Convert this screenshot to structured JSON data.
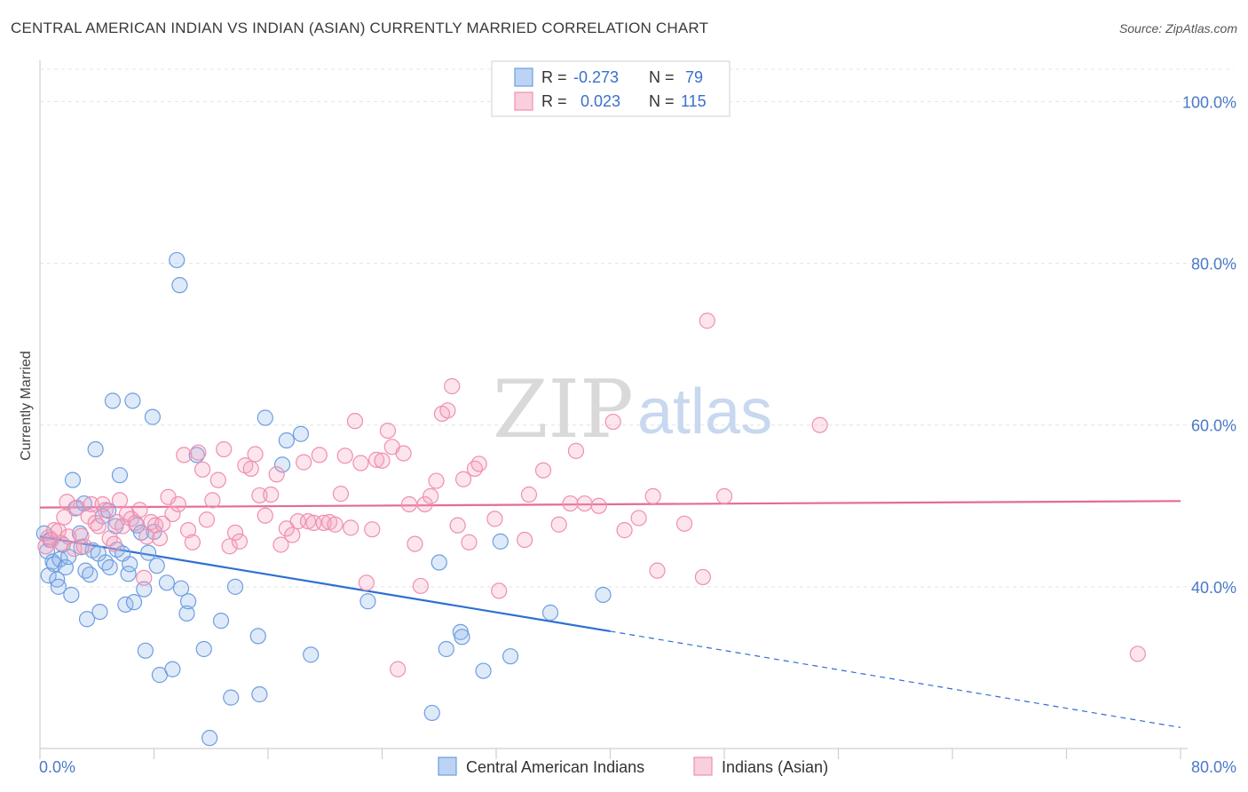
{
  "title": "CENTRAL AMERICAN INDIAN VS INDIAN (ASIAN) CURRENTLY MARRIED CORRELATION CHART",
  "source": "Source: ZipAtlas.com",
  "watermark": {
    "zip": "ZIP",
    "atlas": "atlas"
  },
  "colors": {
    "blue": "#6d9ee0",
    "blue_line": "#2e6fd1",
    "pink": "#ef8fb0",
    "pink_line": "#e46b97",
    "tick": "#4a79c8"
  },
  "legend": {
    "rows": [
      {
        "r_label": "R =",
        "r_value": "-0.273",
        "n_label": "N =",
        "n_value": "79"
      },
      {
        "r_label": "R =",
        "r_value": "0.023",
        "n_label": "N =",
        "n_value": "115"
      }
    ]
  },
  "chart_data": {
    "type": "scatter",
    "title": "CENTRAL AMERICAN INDIAN VS INDIAN (ASIAN) CURRENTLY MARRIED CORRELATION CHART",
    "xlabel": "",
    "ylabel": "Currently Married",
    "xlim": [
      0,
      80
    ],
    "ylim": [
      20,
      104
    ],
    "x_tick_labels": [
      "0.0%",
      "80.0%"
    ],
    "y_ticks": [
      40,
      60,
      80,
      100
    ],
    "y_tick_labels": [
      "40.0%",
      "60.0%",
      "80.0%",
      "100.0%"
    ],
    "grid": true,
    "legend_position": "top-center",
    "series": [
      {
        "name": "Central American Indians",
        "color": "#6d9ee0",
        "trend": {
          "x0": 0,
          "y0": 46.2,
          "x1": 40,
          "y1": 34.5,
          "dashed_to_x": 80,
          "dashed_to_y": 22.6
        },
        "points": [
          [
            0.3,
            46.6
          ],
          [
            0.5,
            44.4
          ],
          [
            0.6,
            41.4
          ],
          [
            0.7,
            45.8
          ],
          [
            0.9,
            43.1
          ],
          [
            1.0,
            42.8
          ],
          [
            1.2,
            40.9
          ],
          [
            1.3,
            40.0
          ],
          [
            1.4,
            43.4
          ],
          [
            1.6,
            45.2
          ],
          [
            1.8,
            42.4
          ],
          [
            2.0,
            43.7
          ],
          [
            2.2,
            39.0
          ],
          [
            2.3,
            53.2
          ],
          [
            2.5,
            49.7
          ],
          [
            2.8,
            46.6
          ],
          [
            2.9,
            44.9
          ],
          [
            3.1,
            50.3
          ],
          [
            3.2,
            42.0
          ],
          [
            3.3,
            36.0
          ],
          [
            3.5,
            41.5
          ],
          [
            3.7,
            44.5
          ],
          [
            3.9,
            57.0
          ],
          [
            4.1,
            44.1
          ],
          [
            4.2,
            36.9
          ],
          [
            4.4,
            48.7
          ],
          [
            4.6,
            43.0
          ],
          [
            4.8,
            49.4
          ],
          [
            4.9,
            42.4
          ],
          [
            5.1,
            63.0
          ],
          [
            5.3,
            47.5
          ],
          [
            5.4,
            44.6
          ],
          [
            5.6,
            53.8
          ],
          [
            5.8,
            44.1
          ],
          [
            6.0,
            37.8
          ],
          [
            6.2,
            41.6
          ],
          [
            6.3,
            42.8
          ],
          [
            6.5,
            63.0
          ],
          [
            6.6,
            38.1
          ],
          [
            6.8,
            47.6
          ],
          [
            7.1,
            46.7
          ],
          [
            7.3,
            39.7
          ],
          [
            7.4,
            32.1
          ],
          [
            7.6,
            44.2
          ],
          [
            7.9,
            61.0
          ],
          [
            8.0,
            46.8
          ],
          [
            8.2,
            42.6
          ],
          [
            8.4,
            29.1
          ],
          [
            8.9,
            40.5
          ],
          [
            9.3,
            29.8
          ],
          [
            9.6,
            80.4
          ],
          [
            9.8,
            77.3
          ],
          [
            9.9,
            39.8
          ],
          [
            10.3,
            36.7
          ],
          [
            10.4,
            38.2
          ],
          [
            11.0,
            56.3
          ],
          [
            11.5,
            32.3
          ],
          [
            11.9,
            21.3
          ],
          [
            12.7,
            35.8
          ],
          [
            13.4,
            26.3
          ],
          [
            13.7,
            40.0
          ],
          [
            15.3,
            33.9
          ],
          [
            15.4,
            26.7
          ],
          [
            15.8,
            60.9
          ],
          [
            17.0,
            55.1
          ],
          [
            17.3,
            58.1
          ],
          [
            18.3,
            58.9
          ],
          [
            19.0,
            31.6
          ],
          [
            23.0,
            38.2
          ],
          [
            27.5,
            24.4
          ],
          [
            28.0,
            43.0
          ],
          [
            28.5,
            32.3
          ],
          [
            29.5,
            34.4
          ],
          [
            29.6,
            33.8
          ],
          [
            31.1,
            29.6
          ],
          [
            32.3,
            45.6
          ],
          [
            33.0,
            31.4
          ],
          [
            35.8,
            36.8
          ],
          [
            39.5,
            39.0
          ]
        ]
      },
      {
        "name": "Indians (Asian)",
        "color": "#ef8fb0",
        "trend": {
          "x0": 0,
          "y0": 49.8,
          "x1": 80,
          "y1": 50.6
        },
        "points": [
          [
            0.4,
            45.0
          ],
          [
            0.6,
            46.1
          ],
          [
            0.8,
            45.8
          ],
          [
            1.0,
            47.0
          ],
          [
            1.3,
            46.9
          ],
          [
            1.5,
            45.4
          ],
          [
            1.7,
            48.6
          ],
          [
            1.9,
            50.5
          ],
          [
            2.0,
            46.2
          ],
          [
            2.4,
            44.7
          ],
          [
            2.6,
            49.8
          ],
          [
            2.9,
            46.3
          ],
          [
            3.1,
            45.0
          ],
          [
            3.4,
            48.7
          ],
          [
            3.6,
            50.2
          ],
          [
            3.9,
            47.9
          ],
          [
            4.1,
            47.5
          ],
          [
            4.4,
            50.2
          ],
          [
            4.6,
            49.5
          ],
          [
            4.9,
            46.0
          ],
          [
            5.2,
            45.3
          ],
          [
            5.4,
            48.0
          ],
          [
            5.6,
            50.7
          ],
          [
            5.8,
            47.5
          ],
          [
            6.1,
            49.0
          ],
          [
            6.4,
            48.4
          ],
          [
            6.7,
            47.9
          ],
          [
            7.0,
            49.5
          ],
          [
            7.3,
            41.1
          ],
          [
            7.5,
            46.2
          ],
          [
            7.8,
            48.0
          ],
          [
            8.1,
            47.6
          ],
          [
            8.4,
            46.0
          ],
          [
            8.6,
            47.8
          ],
          [
            9.0,
            51.1
          ],
          [
            9.3,
            49.0
          ],
          [
            9.7,
            50.2
          ],
          [
            10.1,
            56.3
          ],
          [
            10.4,
            47.0
          ],
          [
            10.7,
            45.5
          ],
          [
            11.1,
            56.6
          ],
          [
            11.4,
            54.5
          ],
          [
            11.7,
            48.3
          ],
          [
            12.1,
            50.7
          ],
          [
            12.5,
            53.2
          ],
          [
            12.9,
            57.0
          ],
          [
            13.3,
            45.0
          ],
          [
            13.7,
            46.7
          ],
          [
            14.0,
            45.6
          ],
          [
            14.4,
            55.0
          ],
          [
            14.8,
            54.6
          ],
          [
            15.1,
            56.4
          ],
          [
            15.4,
            51.3
          ],
          [
            15.8,
            48.8
          ],
          [
            16.2,
            51.4
          ],
          [
            16.6,
            53.9
          ],
          [
            16.9,
            45.2
          ],
          [
            17.3,
            47.2
          ],
          [
            17.7,
            46.4
          ],
          [
            18.1,
            48.1
          ],
          [
            18.5,
            55.4
          ],
          [
            18.8,
            48.1
          ],
          [
            19.2,
            47.9
          ],
          [
            19.6,
            56.3
          ],
          [
            19.9,
            47.9
          ],
          [
            20.3,
            48.0
          ],
          [
            20.7,
            47.7
          ],
          [
            21.1,
            51.5
          ],
          [
            21.4,
            56.2
          ],
          [
            21.8,
            47.3
          ],
          [
            22.1,
            60.5
          ],
          [
            22.5,
            55.3
          ],
          [
            22.9,
            40.5
          ],
          [
            23.3,
            47.1
          ],
          [
            23.6,
            55.7
          ],
          [
            24.0,
            55.6
          ],
          [
            24.4,
            59.3
          ],
          [
            24.7,
            57.3
          ],
          [
            25.1,
            29.8
          ],
          [
            25.5,
            56.5
          ],
          [
            25.9,
            50.2
          ],
          [
            26.3,
            45.3
          ],
          [
            26.7,
            40.1
          ],
          [
            27.0,
            50.2
          ],
          [
            27.4,
            51.2
          ],
          [
            27.8,
            53.1
          ],
          [
            28.2,
            61.4
          ],
          [
            28.6,
            61.8
          ],
          [
            28.9,
            64.8
          ],
          [
            29.3,
            47.6
          ],
          [
            29.7,
            53.3
          ],
          [
            30.1,
            45.5
          ],
          [
            30.5,
            54.6
          ],
          [
            30.8,
            55.2
          ],
          [
            31.9,
            48.4
          ],
          [
            32.2,
            39.5
          ],
          [
            34.0,
            45.8
          ],
          [
            34.3,
            51.4
          ],
          [
            35.3,
            54.4
          ],
          [
            36.4,
            47.7
          ],
          [
            37.2,
            50.3
          ],
          [
            37.6,
            56.8
          ],
          [
            38.2,
            50.3
          ],
          [
            39.2,
            50.0
          ],
          [
            40.2,
            60.4
          ],
          [
            41.0,
            47.0
          ],
          [
            42.0,
            48.5
          ],
          [
            43.0,
            51.2
          ],
          [
            43.3,
            42.0
          ],
          [
            45.2,
            47.8
          ],
          [
            46.5,
            41.2
          ],
          [
            46.8,
            72.9
          ],
          [
            48.0,
            51.2
          ],
          [
            54.7,
            60.0
          ],
          [
            77.0,
            31.7
          ]
        ]
      }
    ]
  },
  "bottom_legend": [
    {
      "label": "Central American Indians"
    },
    {
      "label": "Indians (Asian)"
    }
  ]
}
